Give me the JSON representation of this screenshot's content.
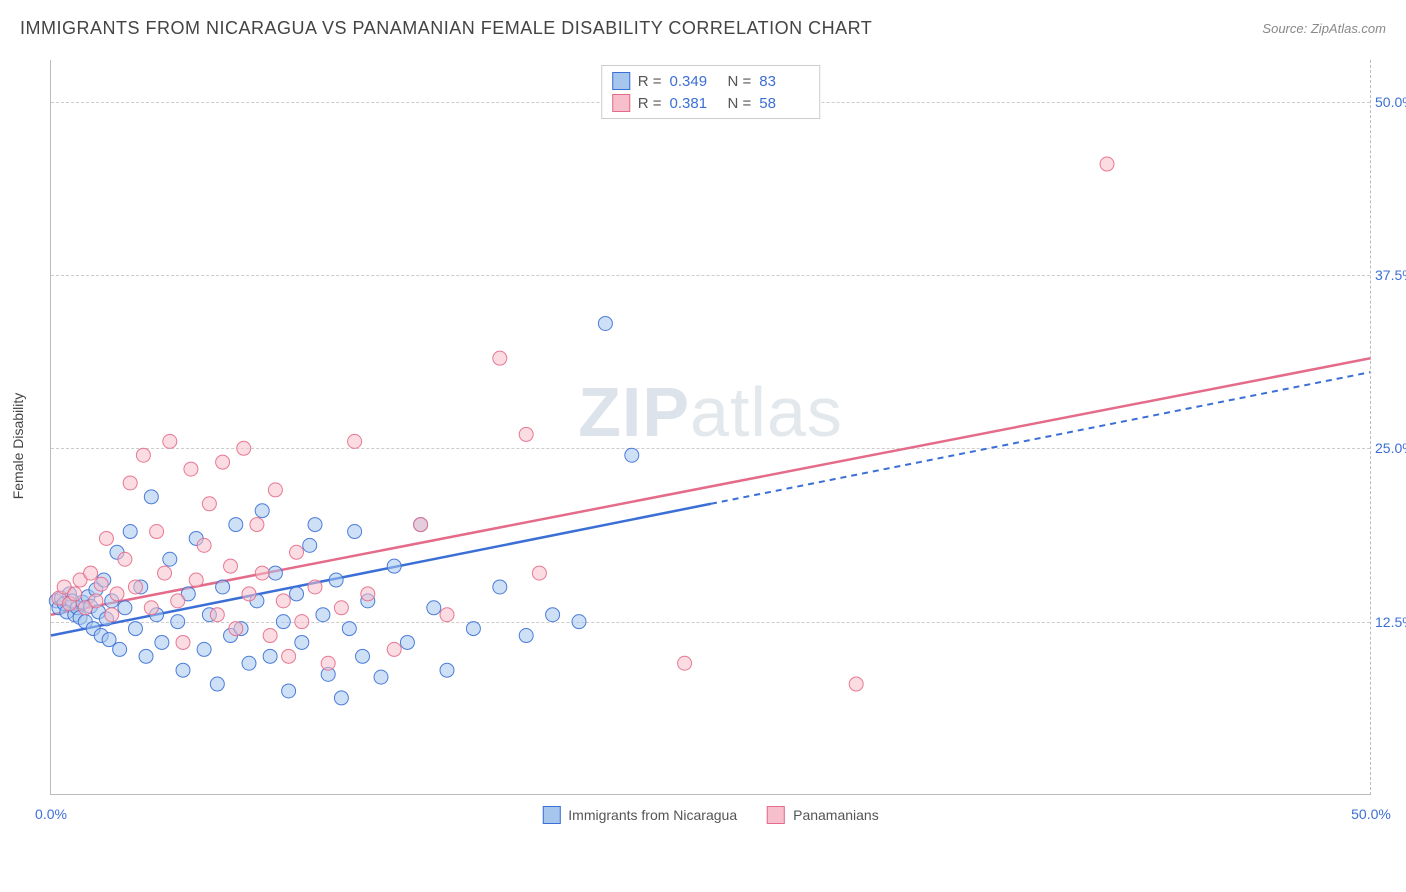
{
  "header": {
    "title": "IMMIGRANTS FROM NICARAGUA VS PANAMANIAN FEMALE DISABILITY CORRELATION CHART",
    "source_label": "Source:",
    "source_value": "ZipAtlas.com"
  },
  "watermark": {
    "bold": "ZIP",
    "rest": "atlas"
  },
  "y_axis": {
    "label": "Female Disability"
  },
  "chart": {
    "type": "scatter",
    "xlim": [
      0,
      50
    ],
    "ylim": [
      0,
      53
    ],
    "x_ticks": [
      {
        "v": 0,
        "label": "0.0%"
      },
      {
        "v": 50,
        "label": "50.0%"
      }
    ],
    "y_gridlines": [
      {
        "v": 12.5,
        "label": "12.5%"
      },
      {
        "v": 25.0,
        "label": "25.0%"
      },
      {
        "v": 37.5,
        "label": "37.5%"
      },
      {
        "v": 50.0,
        "label": "50.0%"
      }
    ],
    "background_color": "#ffffff",
    "grid_color": "#cccccc",
    "marker_radius": 7,
    "marker_opacity": 0.55,
    "marker_stroke_opacity": 0.9,
    "series": [
      {
        "key": "nicaragua",
        "label": "Immigrants from Nicaragua",
        "fill": "#a6c6ee",
        "stroke": "#3b6fd6",
        "R": "0.349",
        "N": "83",
        "trend": {
          "solid_to_x": 25,
          "y0": 11.5,
          "y50": 30.5
        },
        "points": [
          [
            0.2,
            14.0
          ],
          [
            0.3,
            13.5
          ],
          [
            0.4,
            14.2
          ],
          [
            0.5,
            13.8
          ],
          [
            0.6,
            13.2
          ],
          [
            0.7,
            14.5
          ],
          [
            0.8,
            14.0
          ],
          [
            0.9,
            13.0
          ],
          [
            1.0,
            13.5
          ],
          [
            1.1,
            12.8
          ],
          [
            1.2,
            13.9
          ],
          [
            1.3,
            12.5
          ],
          [
            1.4,
            14.3
          ],
          [
            1.5,
            13.6
          ],
          [
            1.6,
            12.0
          ],
          [
            1.7,
            14.8
          ],
          [
            1.8,
            13.2
          ],
          [
            1.9,
            11.5
          ],
          [
            2.0,
            15.5
          ],
          [
            2.1,
            12.7
          ],
          [
            2.2,
            11.2
          ],
          [
            2.3,
            14.0
          ],
          [
            2.5,
            17.5
          ],
          [
            2.6,
            10.5
          ],
          [
            2.8,
            13.5
          ],
          [
            3.0,
            19.0
          ],
          [
            3.2,
            12.0
          ],
          [
            3.4,
            15.0
          ],
          [
            3.6,
            10.0
          ],
          [
            3.8,
            21.5
          ],
          [
            4.0,
            13.0
          ],
          [
            4.2,
            11.0
          ],
          [
            4.5,
            17.0
          ],
          [
            4.8,
            12.5
          ],
          [
            5.0,
            9.0
          ],
          [
            5.2,
            14.5
          ],
          [
            5.5,
            18.5
          ],
          [
            5.8,
            10.5
          ],
          [
            6.0,
            13.0
          ],
          [
            6.3,
            8.0
          ],
          [
            6.5,
            15.0
          ],
          [
            6.8,
            11.5
          ],
          [
            7.0,
            19.5
          ],
          [
            7.2,
            12.0
          ],
          [
            7.5,
            9.5
          ],
          [
            7.8,
            14.0
          ],
          [
            8.0,
            20.5
          ],
          [
            8.3,
            10.0
          ],
          [
            8.5,
            16.0
          ],
          [
            8.8,
            12.5
          ],
          [
            9.0,
            7.5
          ],
          [
            9.3,
            14.5
          ],
          [
            9.5,
            11.0
          ],
          [
            9.8,
            18.0
          ],
          [
            10.0,
            19.5
          ],
          [
            10.3,
            13.0
          ],
          [
            10.5,
            8.7
          ],
          [
            10.8,
            15.5
          ],
          [
            11.0,
            7.0
          ],
          [
            11.3,
            12.0
          ],
          [
            11.5,
            19.0
          ],
          [
            11.8,
            10.0
          ],
          [
            12.0,
            14.0
          ],
          [
            12.5,
            8.5
          ],
          [
            13.0,
            16.5
          ],
          [
            13.5,
            11.0
          ],
          [
            14.0,
            19.5
          ],
          [
            14.5,
            13.5
          ],
          [
            15.0,
            9.0
          ],
          [
            16.0,
            12.0
          ],
          [
            17.0,
            15.0
          ],
          [
            18.0,
            11.5
          ],
          [
            19.0,
            13.0
          ],
          [
            20.0,
            12.5
          ],
          [
            21.0,
            34.0
          ],
          [
            22.0,
            24.5
          ]
        ]
      },
      {
        "key": "panamanians",
        "label": "Panamanians",
        "fill": "#f6bfcb",
        "stroke": "#e56b8a",
        "R": "0.381",
        "N": "58",
        "trend": {
          "solid_to_x": 50,
          "y0": 13.0,
          "y50": 31.5
        },
        "points": [
          [
            0.3,
            14.2
          ],
          [
            0.5,
            15.0
          ],
          [
            0.7,
            13.8
          ],
          [
            0.9,
            14.5
          ],
          [
            1.1,
            15.5
          ],
          [
            1.3,
            13.5
          ],
          [
            1.5,
            16.0
          ],
          [
            1.7,
            14.0
          ],
          [
            1.9,
            15.2
          ],
          [
            2.1,
            18.5
          ],
          [
            2.3,
            13.0
          ],
          [
            2.5,
            14.5
          ],
          [
            2.8,
            17.0
          ],
          [
            3.0,
            22.5
          ],
          [
            3.2,
            15.0
          ],
          [
            3.5,
            24.5
          ],
          [
            3.8,
            13.5
          ],
          [
            4.0,
            19.0
          ],
          [
            4.3,
            16.0
          ],
          [
            4.5,
            25.5
          ],
          [
            4.8,
            14.0
          ],
          [
            5.0,
            11.0
          ],
          [
            5.3,
            23.5
          ],
          [
            5.5,
            15.5
          ],
          [
            5.8,
            18.0
          ],
          [
            6.0,
            21.0
          ],
          [
            6.3,
            13.0
          ],
          [
            6.5,
            24.0
          ],
          [
            6.8,
            16.5
          ],
          [
            7.0,
            12.0
          ],
          [
            7.3,
            25.0
          ],
          [
            7.5,
            14.5
          ],
          [
            7.8,
            19.5
          ],
          [
            8.0,
            16.0
          ],
          [
            8.3,
            11.5
          ],
          [
            8.5,
            22.0
          ],
          [
            8.8,
            14.0
          ],
          [
            9.0,
            10.0
          ],
          [
            9.3,
            17.5
          ],
          [
            9.5,
            12.5
          ],
          [
            10.0,
            15.0
          ],
          [
            10.5,
            9.5
          ],
          [
            11.0,
            13.5
          ],
          [
            11.5,
            25.5
          ],
          [
            12.0,
            14.5
          ],
          [
            13.0,
            10.5
          ],
          [
            14.0,
            19.5
          ],
          [
            15.0,
            13.0
          ],
          [
            17.0,
            31.5
          ],
          [
            18.0,
            26.0
          ],
          [
            18.5,
            16.0
          ],
          [
            24.0,
            9.5
          ],
          [
            30.5,
            8.0
          ],
          [
            40.0,
            45.5
          ]
        ]
      }
    ]
  },
  "legend": {
    "r_label": "R =",
    "n_label": "N ="
  }
}
